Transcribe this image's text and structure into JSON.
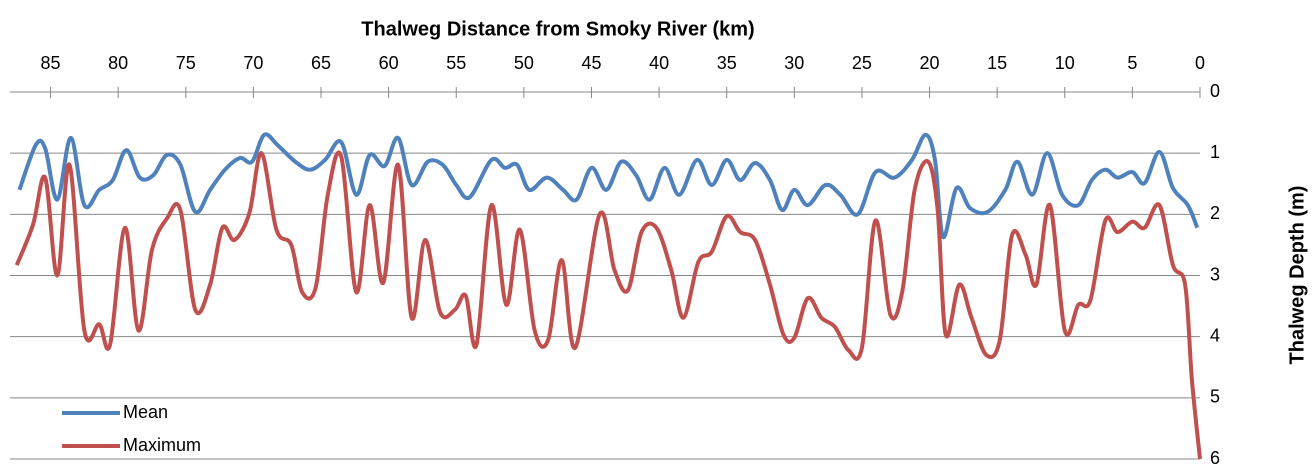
{
  "chart_data": {
    "type": "line",
    "x_axis_label": "Thalweg Distance from Smoky River (km)",
    "y_axis_label": "Thalweg Depth (m)",
    "xlim": [
      88,
      0
    ],
    "xticks": [
      85,
      80,
      75,
      70,
      65,
      60,
      55,
      50,
      45,
      40,
      35,
      30,
      25,
      20,
      15,
      10,
      5,
      0
    ],
    "ylim": [
      0,
      6
    ],
    "yticks": [
      0,
      1,
      2,
      3,
      4,
      5,
      6
    ],
    "y_reversed": true,
    "grid": true,
    "legend": "lower left",
    "series": [
      {
        "name": "Mean",
        "color": "#4f81bd",
        "x": [
          87.3,
          86.1,
          85.4,
          84.5,
          83.5,
          82.5,
          81.4,
          80.4,
          79.4,
          78.4,
          77.4,
          76.4,
          75.4,
          74.3,
          73.2,
          72.1,
          71.0,
          70.1,
          69.2,
          68.2,
          66.9,
          65.8,
          64.7,
          63.5,
          62.4,
          61.4,
          60.3,
          59.3,
          58.3,
          57.1,
          56.0,
          55.0,
          54.0,
          52.4,
          51.4,
          50.5,
          49.6,
          48.3,
          47.1,
          46.1,
          45.0,
          43.9,
          42.8,
          41.7,
          40.7,
          39.6,
          38.5,
          37.2,
          36.1,
          35.0,
          34.0,
          32.9,
          31.8,
          30.9,
          30.0,
          29.0,
          27.7,
          26.6,
          25.3,
          24.0,
          22.6,
          21.3,
          20.3,
          19.6,
          19.0,
          18.0,
          17.0,
          15.7,
          14.4,
          13.5,
          12.4,
          11.3,
          10.2,
          9.0,
          8.0,
          7.0,
          6.1,
          5.0,
          4.1,
          3.0,
          2.0,
          0.9,
          0.2
        ],
        "values": [
          1.6,
          0.87,
          0.92,
          1.76,
          0.75,
          1.85,
          1.6,
          1.44,
          0.95,
          1.4,
          1.36,
          1.03,
          1.19,
          1.96,
          1.6,
          1.27,
          1.08,
          1.14,
          0.7,
          0.87,
          1.14,
          1.27,
          1.11,
          0.82,
          1.68,
          1.03,
          1.21,
          0.75,
          1.52,
          1.14,
          1.19,
          1.52,
          1.72,
          1.11,
          1.24,
          1.19,
          1.6,
          1.4,
          1.6,
          1.76,
          1.24,
          1.6,
          1.14,
          1.36,
          1.76,
          1.24,
          1.68,
          1.11,
          1.52,
          1.11,
          1.44,
          1.16,
          1.44,
          1.93,
          1.6,
          1.85,
          1.52,
          1.68,
          2.0,
          1.31,
          1.4,
          1.11,
          0.7,
          1.11,
          2.37,
          1.57,
          1.9,
          1.96,
          1.6,
          1.14,
          1.68,
          1.0,
          1.68,
          1.85,
          1.44,
          1.27,
          1.4,
          1.31,
          1.49,
          0.98,
          1.57,
          1.85,
          2.22
        ]
      },
      {
        "name": "Maximum",
        "color": "#c0504d",
        "x": [
          87.5,
          86.3,
          85.4,
          84.5,
          83.6,
          82.5,
          81.4,
          80.6,
          79.5,
          78.5,
          77.5,
          76.4,
          75.4,
          74.3,
          73.2,
          72.3,
          71.4,
          70.3,
          69.4,
          68.3,
          67.2,
          66.4,
          65.4,
          64.5,
          63.5,
          62.4,
          61.4,
          60.4,
          59.3,
          58.3,
          57.3,
          56.2,
          55.1,
          54.3,
          53.5,
          52.4,
          51.3,
          50.3,
          49.2,
          48.2,
          47.2,
          46.2,
          44.4,
          43.3,
          42.3,
          41.3,
          40.2,
          39.1,
          38.2,
          37.1,
          36.1,
          35.0,
          34.0,
          32.9,
          31.8,
          30.8,
          30.0,
          29.0,
          28.0,
          27.0,
          26.0,
          25.0,
          24.0,
          22.9,
          22.0,
          21.1,
          20.1,
          19.4,
          18.8,
          17.8,
          16.9,
          15.8,
          14.8,
          13.9,
          12.9,
          12.1,
          11.1,
          10.0,
          9.0,
          8.1,
          7.0,
          6.1,
          5.0,
          4.1,
          3.0,
          2.0,
          1.1,
          0.6,
          0
        ],
        "values": [
          2.83,
          2.17,
          1.4,
          3.0,
          1.19,
          3.9,
          3.8,
          4.13,
          2.22,
          3.9,
          2.58,
          2.07,
          1.93,
          3.56,
          3.15,
          2.22,
          2.42,
          1.98,
          1.0,
          2.25,
          2.5,
          3.27,
          3.2,
          1.68,
          1.06,
          3.27,
          1.85,
          3.12,
          1.19,
          3.69,
          2.42,
          3.6,
          3.56,
          3.33,
          4.13,
          1.85,
          3.48,
          2.25,
          3.9,
          4.05,
          2.75,
          4.18,
          2.0,
          2.91,
          3.24,
          2.29,
          2.22,
          2.91,
          3.69,
          2.78,
          2.61,
          2.03,
          2.29,
          2.42,
          3.15,
          3.97,
          4.02,
          3.37,
          3.69,
          3.84,
          4.22,
          4.18,
          2.1,
          3.64,
          3.24,
          1.6,
          1.14,
          1.93,
          3.97,
          3.15,
          3.69,
          4.3,
          4.05,
          2.34,
          2.66,
          3.15,
          1.85,
          3.9,
          3.48,
          3.4,
          2.1,
          2.29,
          2.12,
          2.22,
          1.85,
          2.83,
          3.15,
          4.7,
          6.0
        ]
      }
    ]
  }
}
